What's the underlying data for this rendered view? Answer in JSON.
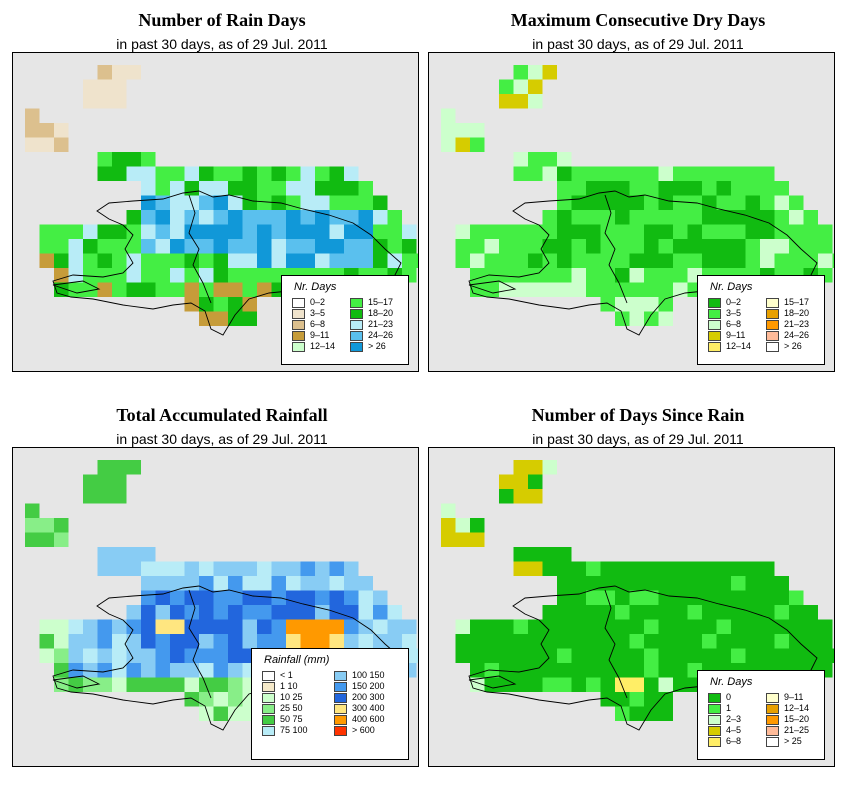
{
  "subtitle": "in past 30 days, as of  29 Jul. 2011",
  "panels": [
    {
      "title": "Number of Rain Days",
      "legend_title": "Nr. Days",
      "legend": [
        {
          "label": "0–2",
          "color": "#ffffff"
        },
        {
          "label": "3–5",
          "color": "#efe3cc"
        },
        {
          "label": "6–8",
          "color": "#dcc08e"
        },
        {
          "label": "9–11",
          "color": "#c69c3a"
        },
        {
          "label": "12–14",
          "color": "#ccffcc"
        },
        {
          "label": "15–17",
          "color": "#44ee44"
        },
        {
          "label": "18–20",
          "color": "#11bb11"
        },
        {
          "label": "21–23",
          "color": "#b8ecf7"
        },
        {
          "label": "24–26",
          "color": "#5ac0ee"
        },
        {
          "label": "> 26",
          "color": "#1198d8"
        }
      ]
    },
    {
      "title": "Maximum Consecutive Dry Days",
      "legend_title": "Nr. Days",
      "legend": [
        {
          "label": "0–2",
          "color": "#11bb11"
        },
        {
          "label": "3–5",
          "color": "#44ee44"
        },
        {
          "label": "6–8",
          "color": "#ccffcc"
        },
        {
          "label": "9–11",
          "color": "#d6cc00"
        },
        {
          "label": "12–14",
          "color": "#ffee66"
        },
        {
          "label": "15–17",
          "color": "#ffffcc"
        },
        {
          "label": "18–20",
          "color": "#e8a000"
        },
        {
          "label": "21–23",
          "color": "#ff9900"
        },
        {
          "label": "24–26",
          "color": "#ffbb99"
        },
        {
          "label": "> 26",
          "color": "#ffffff"
        }
      ]
    },
    {
      "title": "Total Accumulated Rainfall",
      "legend_title": "Rainfall (mm)",
      "legend": [
        {
          "label": "< 1",
          "color": "#ffffff"
        },
        {
          "label": "1    10",
          "color": "#f5e9c9"
        },
        {
          "label": "10    25",
          "color": "#ccffcc"
        },
        {
          "label": "25    50",
          "color": "#88ee88"
        },
        {
          "label": "50    75",
          "color": "#44cc44"
        },
        {
          "label": "75    100",
          "color": "#b8ecf7"
        },
        {
          "label": "100    150",
          "color": "#88ccf4"
        },
        {
          "label": "150    200",
          "color": "#4499ee"
        },
        {
          "label": "200    300",
          "color": "#2266dd"
        },
        {
          "label": "300    400",
          "color": "#ffe680"
        },
        {
          "label": "400    600",
          "color": "#ff9900"
        },
        {
          "label": "> 600",
          "color": "#ff3300"
        }
      ]
    },
    {
      "title": "Number of Days Since Rain",
      "legend_title": "Nr. Days",
      "legend": [
        {
          "label": "0",
          "color": "#11bb11"
        },
        {
          "label": "1",
          "color": "#44ee44"
        },
        {
          "label": "2–3",
          "color": "#ccffcc"
        },
        {
          "label": "4–5",
          "color": "#d6cc00"
        },
        {
          "label": "6–8",
          "color": "#ffee66"
        },
        {
          "label": "9–11",
          "color": "#ffffcc"
        },
        {
          "label": "12–14",
          "color": "#e8a000"
        },
        {
          "label": "15–20",
          "color": "#ff9900"
        },
        {
          "label": "21–25",
          "color": "#ffbb99"
        },
        {
          "label": "> 25",
          "color": "#ffffff"
        }
      ]
    }
  ]
}
